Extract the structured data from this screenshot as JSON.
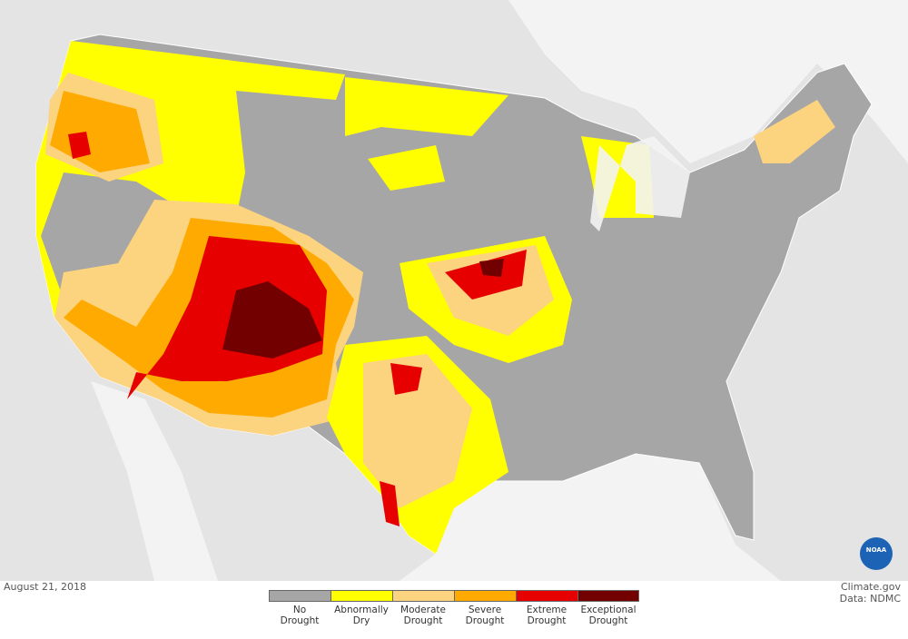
{
  "map": {
    "date": "August 21, 2018",
    "credit": "Climate.gov",
    "source": "Data: NDMC",
    "logo": "NOAA"
  },
  "legend": {
    "items": [
      {
        "label": "No Drought",
        "color": "#a6a6a6"
      },
      {
        "label": "Abnormally Dry",
        "color": "#ffff00"
      },
      {
        "label": "Moderate Drought",
        "color": "#fcd37f"
      },
      {
        "label": "Severe Drought",
        "color": "#ffaa00"
      },
      {
        "label": "Extreme Drought",
        "color": "#e60000"
      },
      {
        "label": "Exceptional Drought",
        "color": "#730000"
      }
    ]
  }
}
